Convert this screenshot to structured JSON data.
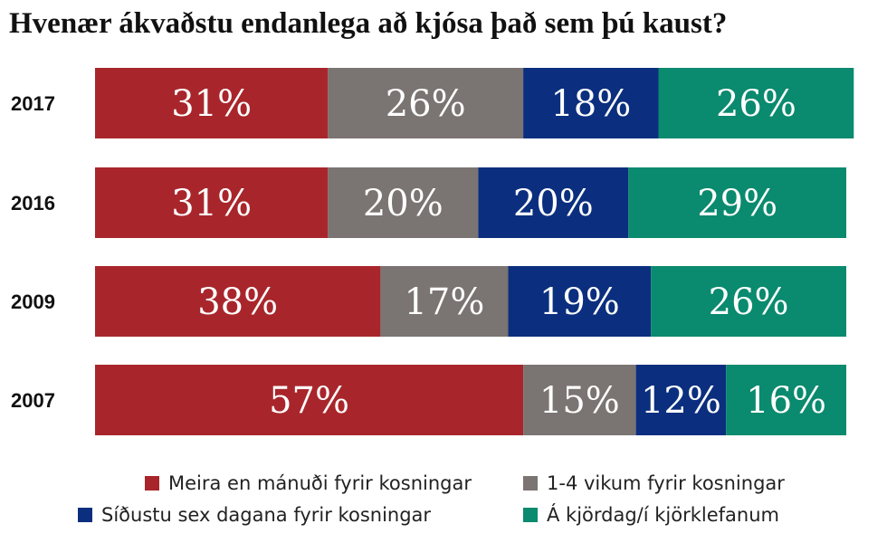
{
  "chart_data": {
    "type": "bar",
    "orientation": "horizontal",
    "stacked": true,
    "title": "Hvenær ákvaðstu endanlega að kjósa það sem þú kaust?",
    "categories": [
      "2017",
      "2016",
      "2009",
      "2007"
    ],
    "series": [
      {
        "name": "Meira en mánuði fyrir kosningar",
        "color": "#a8262b",
        "values": [
          31,
          31,
          38,
          57
        ],
        "labels": [
          "31%",
          "31%",
          "38%",
          "57%"
        ]
      },
      {
        "name": "1-4 vikum fyrir kosningar",
        "color": "#7a7472",
        "values": [
          26,
          20,
          17,
          15
        ],
        "labels": [
          "26%",
          "20%",
          "17%",
          "15%"
        ]
      },
      {
        "name": "Síðustu sex dagana fyrir kosningar",
        "color": "#0b2f7e",
        "values": [
          18,
          20,
          19,
          12
        ],
        "labels": [
          "18%",
          "20%",
          "19%",
          "12%"
        ]
      },
      {
        "name": "Á kjördag/í kjörklefanum",
        "color": "#0a8a6e",
        "values": [
          26,
          29,
          26,
          16
        ],
        "labels": [
          "26%",
          "29%",
          "26%",
          "16%"
        ]
      }
    ],
    "xlim": [
      0,
      100
    ],
    "grid": false,
    "legend_position": "bottom"
  }
}
